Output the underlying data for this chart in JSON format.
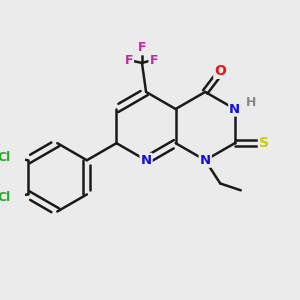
{
  "background_color": "#ebebeb",
  "bond_color": "#1a1a1a",
  "lw": 1.8,
  "atom_colors": {
    "N": "#1010ee",
    "O": "#ee1010",
    "S": "#cccc00",
    "F": "#cc22aa",
    "Cl": "#22aa22",
    "H": "#888888",
    "C": "#1a1a1a"
  },
  "figsize": [
    3.0,
    3.0
  ],
  "dpi": 100
}
